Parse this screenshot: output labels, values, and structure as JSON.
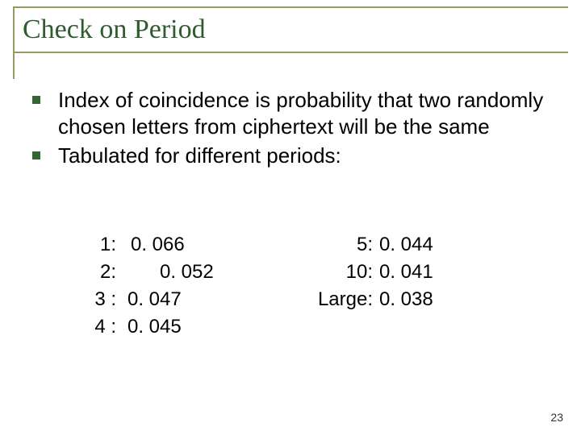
{
  "title": "Check on Period",
  "bullets": [
    "Index of coincidence is probability that two randomly chosen letters from ciphertext will be the same",
    "Tabulated for different periods:"
  ],
  "table": {
    "left": [
      {
        "label": "1:",
        "value": "0. 066"
      },
      {
        "label": "2:",
        "value": "0. 052"
      },
      {
        "label": "3 :",
        "value": "0. 047"
      },
      {
        "label": "4 :",
        "value": "0. 045"
      }
    ],
    "right": [
      {
        "label": "5:",
        "value": "0. 044"
      },
      {
        "label": "10:",
        "value": "0. 041"
      },
      {
        "label": "Large:",
        "value": "0. 038"
      }
    ]
  },
  "page_number": "23",
  "colors": {
    "title_color": "#2f5c2f",
    "frame_color": "#999966",
    "bullet_color": "#336633",
    "text_color": "#000000",
    "background": "#ffffff"
  },
  "typography": {
    "title_fontsize": 34,
    "body_fontsize": 26,
    "table_fontsize": 24,
    "pagenum_fontsize": 14
  }
}
